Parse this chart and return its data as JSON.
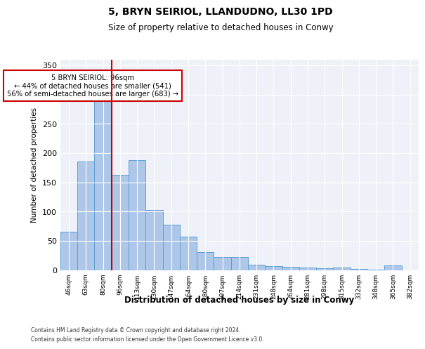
{
  "title": "5, BRYN SEIRIOL, LLANDUDNO, LL30 1PD",
  "subtitle": "Size of property relative to detached houses in Conwy",
  "xlabel": "Distribution of detached houses by size in Conwy",
  "ylabel": "Number of detached properties",
  "bar_color": "#aec6e8",
  "bar_edge_color": "#5a9fd4",
  "bg_color": "#eef2f8",
  "grid_color": "#ffffff",
  "ref_line_color": "#cc0000",
  "annotation_box_color": "#cc0000",
  "annotation_text": "5 BRYN SEIRIOL: 96sqm\n← 44% of detached houses are smaller (541)\n56% of semi-detached houses are larger (683) →",
  "footnote1": "Contains HM Land Registry data © Crown copyright and database right 2024.",
  "footnote2": "Contains public sector information licensed under the Open Government Licence v3.0.",
  "categories": [
    "46sqm",
    "63sqm",
    "80sqm",
    "96sqm",
    "113sqm",
    "130sqm",
    "147sqm",
    "164sqm",
    "180sqm",
    "197sqm",
    "214sqm",
    "231sqm",
    "248sqm",
    "264sqm",
    "281sqm",
    "298sqm",
    "315sqm",
    "332sqm",
    "348sqm",
    "365sqm",
    "382sqm"
  ],
  "values": [
    65,
    185,
    295,
    163,
    188,
    103,
    78,
    57,
    31,
    22,
    22,
    9,
    7,
    5,
    4,
    3,
    4,
    2,
    1,
    8,
    0
  ],
  "ylim": [
    0,
    360
  ],
  "yticks": [
    0,
    50,
    100,
    150,
    200,
    250,
    300,
    350
  ],
  "ref_bar_index": 3,
  "figsize": [
    6.0,
    5.0
  ],
  "dpi": 100
}
